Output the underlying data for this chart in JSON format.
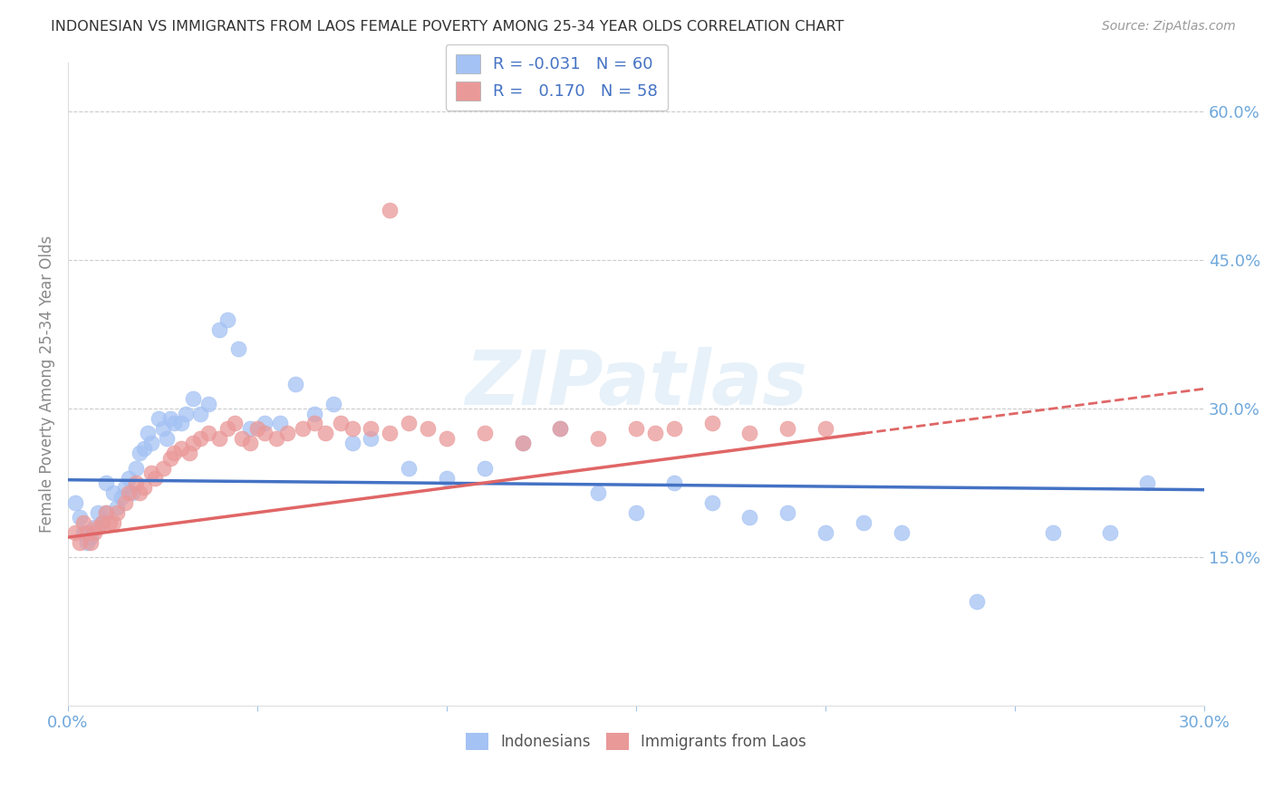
{
  "title": "INDONESIAN VS IMMIGRANTS FROM LAOS FEMALE POVERTY AMONG 25-34 YEAR OLDS CORRELATION CHART",
  "source": "Source: ZipAtlas.com",
  "ylabel": "Female Poverty Among 25-34 Year Olds",
  "xlim": [
    0.0,
    0.3
  ],
  "ylim": [
    0.0,
    0.65
  ],
  "R_blue": -0.031,
  "N_blue": 60,
  "R_pink": 0.17,
  "N_pink": 58,
  "blue_color": "#a4c2f4",
  "pink_color": "#ea9999",
  "blue_line_color": "#4472c4",
  "pink_line_color": "#e06666",
  "grid_color": "#cccccc",
  "watermark": "ZIPatlas",
  "indonesians_x": [
    0.002,
    0.003,
    0.004,
    0.005,
    0.006,
    0.007,
    0.008,
    0.009,
    0.01,
    0.01,
    0.012,
    0.013,
    0.014,
    0.015,
    0.016,
    0.017,
    0.018,
    0.019,
    0.02,
    0.021,
    0.022,
    0.024,
    0.025,
    0.026,
    0.027,
    0.028,
    0.03,
    0.031,
    0.033,
    0.035,
    0.037,
    0.04,
    0.042,
    0.045,
    0.048,
    0.052,
    0.056,
    0.06,
    0.065,
    0.07,
    0.075,
    0.08,
    0.09,
    0.1,
    0.11,
    0.12,
    0.13,
    0.14,
    0.15,
    0.16,
    0.17,
    0.18,
    0.19,
    0.2,
    0.21,
    0.22,
    0.24,
    0.26,
    0.275,
    0.285
  ],
  "indonesians_y": [
    0.205,
    0.19,
    0.175,
    0.165,
    0.17,
    0.18,
    0.195,
    0.185,
    0.225,
    0.195,
    0.215,
    0.2,
    0.21,
    0.22,
    0.23,
    0.215,
    0.24,
    0.255,
    0.26,
    0.275,
    0.265,
    0.29,
    0.28,
    0.27,
    0.29,
    0.285,
    0.285,
    0.295,
    0.31,
    0.295,
    0.305,
    0.38,
    0.39,
    0.36,
    0.28,
    0.285,
    0.285,
    0.325,
    0.295,
    0.305,
    0.265,
    0.27,
    0.24,
    0.23,
    0.24,
    0.265,
    0.28,
    0.215,
    0.195,
    0.225,
    0.205,
    0.19,
    0.195,
    0.175,
    0.185,
    0.175,
    0.105,
    0.175,
    0.175,
    0.225
  ],
  "laos_x": [
    0.002,
    0.003,
    0.004,
    0.005,
    0.006,
    0.007,
    0.008,
    0.009,
    0.01,
    0.011,
    0.012,
    0.013,
    0.015,
    0.016,
    0.018,
    0.019,
    0.02,
    0.022,
    0.023,
    0.025,
    0.027,
    0.028,
    0.03,
    0.032,
    0.033,
    0.035,
    0.037,
    0.04,
    0.042,
    0.044,
    0.046,
    0.048,
    0.05,
    0.052,
    0.055,
    0.058,
    0.062,
    0.065,
    0.068,
    0.072,
    0.075,
    0.08,
    0.085,
    0.09,
    0.095,
    0.1,
    0.11,
    0.12,
    0.13,
    0.14,
    0.15,
    0.155,
    0.16,
    0.17,
    0.18,
    0.19,
    0.2,
    0.085
  ],
  "laos_y": [
    0.175,
    0.165,
    0.185,
    0.175,
    0.165,
    0.175,
    0.18,
    0.185,
    0.195,
    0.185,
    0.185,
    0.195,
    0.205,
    0.215,
    0.225,
    0.215,
    0.22,
    0.235,
    0.23,
    0.24,
    0.25,
    0.255,
    0.26,
    0.255,
    0.265,
    0.27,
    0.275,
    0.27,
    0.28,
    0.285,
    0.27,
    0.265,
    0.28,
    0.275,
    0.27,
    0.275,
    0.28,
    0.285,
    0.275,
    0.285,
    0.28,
    0.28,
    0.275,
    0.285,
    0.28,
    0.27,
    0.275,
    0.265,
    0.28,
    0.27,
    0.28,
    0.275,
    0.28,
    0.285,
    0.275,
    0.28,
    0.28,
    0.5
  ]
}
